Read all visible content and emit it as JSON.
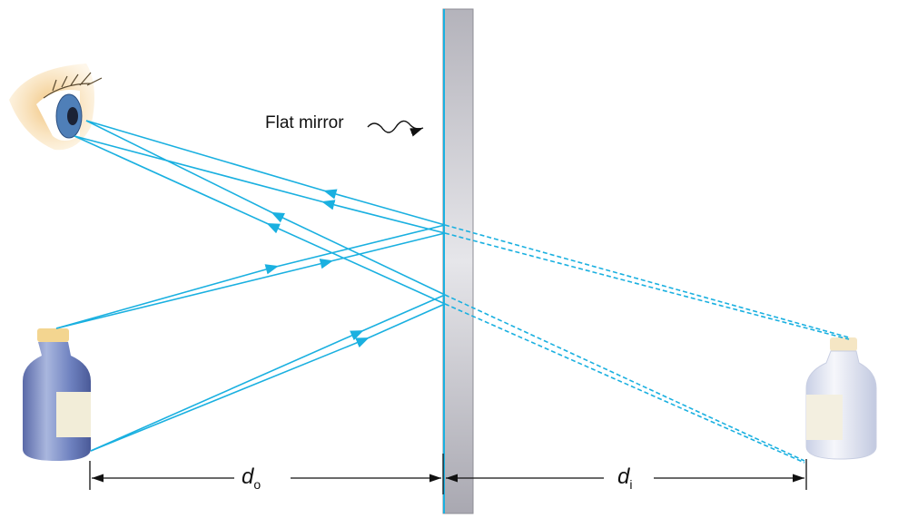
{
  "labels": {
    "mirror": "Flat mirror",
    "object_distance_symbol": "d",
    "object_distance_subscript": "o",
    "image_distance_symbol": "d",
    "image_distance_subscript": "i"
  },
  "colors": {
    "ray": "#1ab0e0",
    "mirror": "#b8b8c0",
    "object_bottle": "#6f82b8",
    "image_bottle": "#e4e8f2",
    "skin": "#f2c98a",
    "iris": "#4f7fb8"
  },
  "icons": [
    "eye-icon",
    "bottle-object-icon",
    "bottle-image-icon"
  ]
}
